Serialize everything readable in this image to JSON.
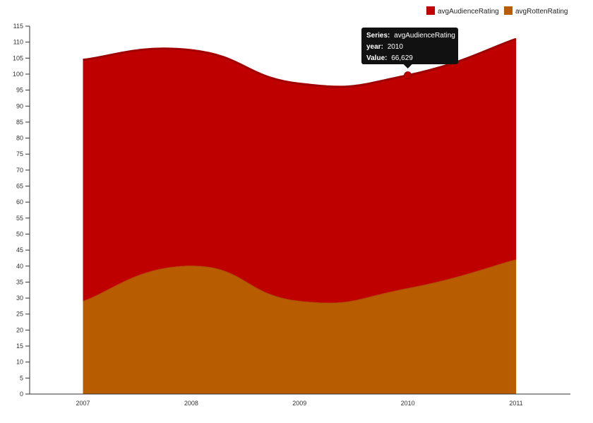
{
  "chart_data": {
    "type": "area",
    "stacked": true,
    "x": [
      "2007",
      "2008",
      "2009",
      "2010",
      "2011"
    ],
    "series": [
      {
        "name": "avgAudienceRating",
        "values": [
          75.5,
          67.5,
          68,
          66.629,
          69
        ],
        "color": "#bf0000"
      },
      {
        "name": "avgRottenRating",
        "values": [
          29,
          40,
          29,
          33,
          42
        ],
        "color": "#b85c00"
      }
    ],
    "ylim": [
      0,
      115
    ],
    "yticks": [
      0,
      5,
      10,
      15,
      20,
      25,
      30,
      35,
      40,
      45,
      50,
      55,
      60,
      65,
      70,
      75,
      80,
      85,
      90,
      95,
      100,
      105,
      110,
      115
    ],
    "legend_position": "top-right",
    "grid": false,
    "tooltip": {
      "series_key": "Series:",
      "series_value": "avgAudienceRating",
      "x_key": "year:",
      "x_value": "2010",
      "value_key": "Value:",
      "value_value": "66,629"
    },
    "colors": {
      "top_line": "#a00000",
      "marker": "#c00000",
      "axis": "#333333",
      "tooltip_bg": "#111111"
    }
  }
}
